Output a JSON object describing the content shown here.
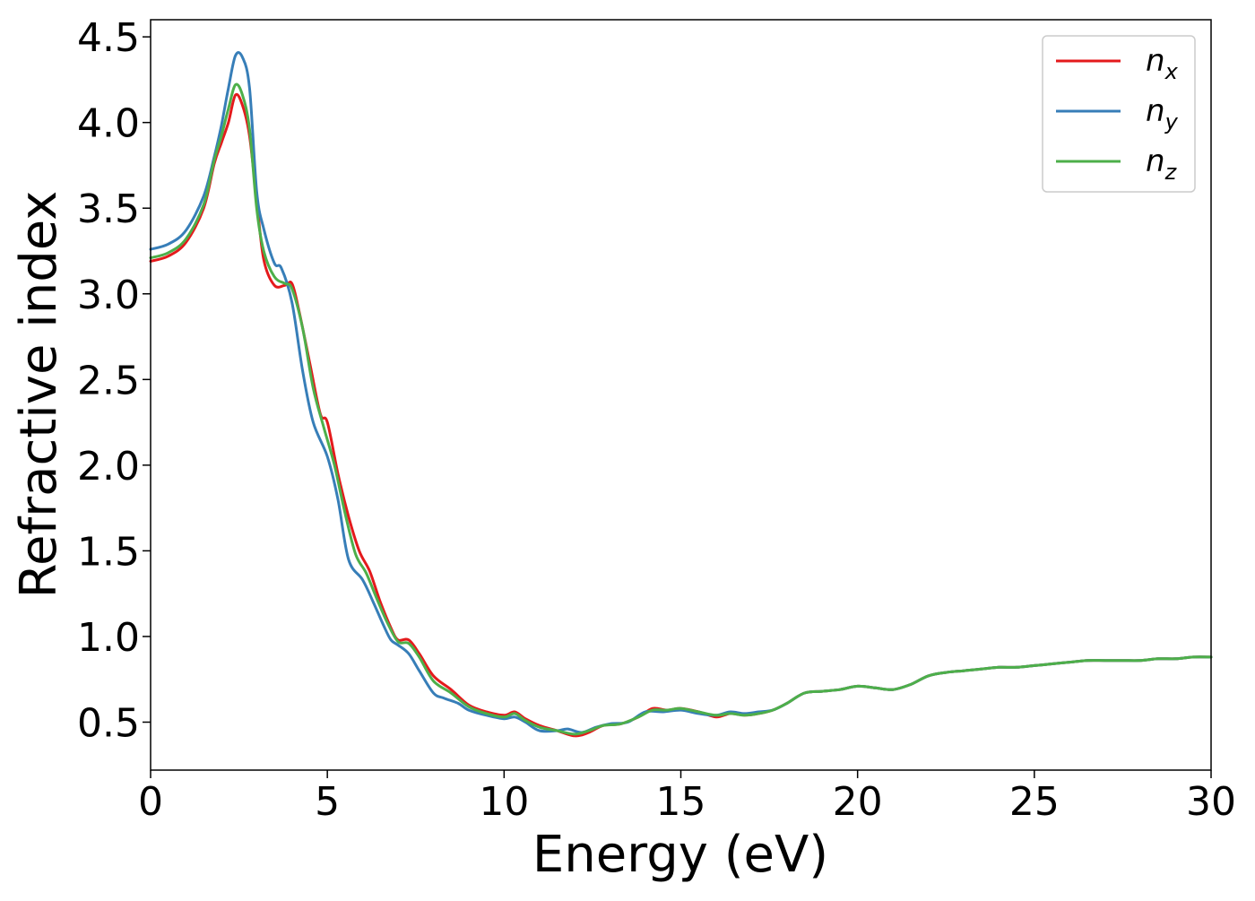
{
  "chart_data": {
    "type": "line",
    "title": "",
    "xlabel": "Energy (eV)",
    "ylabel": "Refractive index",
    "xlim": [
      0,
      30
    ],
    "ylim": [
      0.22,
      4.6
    ],
    "xticks": [
      {
        "value": 0,
        "label": "0"
      },
      {
        "value": 5,
        "label": "5"
      },
      {
        "value": 10,
        "label": "10"
      },
      {
        "value": 15,
        "label": "15"
      },
      {
        "value": 20,
        "label": "20"
      },
      {
        "value": 25,
        "label": "25"
      },
      {
        "value": 30,
        "label": "30"
      }
    ],
    "yticks": [
      {
        "value": 0.5,
        "label": "0.5"
      },
      {
        "value": 1.0,
        "label": "1.0"
      },
      {
        "value": 1.5,
        "label": "1.5"
      },
      {
        "value": 2.0,
        "label": "2.0"
      },
      {
        "value": 2.5,
        "label": "2.5"
      },
      {
        "value": 3.0,
        "label": "3.0"
      },
      {
        "value": 3.5,
        "label": "3.5"
      },
      {
        "value": 4.0,
        "label": "4.0"
      },
      {
        "value": 4.5,
        "label": "4.5"
      }
    ],
    "grid": false,
    "legend": {
      "placement": "top-right"
    },
    "series": [
      {
        "name": "n",
        "subscript": "x",
        "color": "#e41a1c",
        "points": [
          [
            0,
            3.19
          ],
          [
            0.5,
            3.22
          ],
          [
            1.0,
            3.3
          ],
          [
            1.5,
            3.5
          ],
          [
            1.8,
            3.76
          ],
          [
            2.0,
            3.88
          ],
          [
            2.2,
            4.0
          ],
          [
            2.4,
            4.16
          ],
          [
            2.6,
            4.1
          ],
          [
            2.8,
            3.92
          ],
          [
            3.0,
            3.55
          ],
          [
            3.2,
            3.2
          ],
          [
            3.5,
            3.05
          ],
          [
            3.8,
            3.05
          ],
          [
            4.0,
            3.06
          ],
          [
            4.2,
            2.9
          ],
          [
            4.5,
            2.6
          ],
          [
            4.8,
            2.3
          ],
          [
            5.0,
            2.25
          ],
          [
            5.3,
            1.95
          ],
          [
            5.6,
            1.7
          ],
          [
            5.9,
            1.5
          ],
          [
            6.2,
            1.38
          ],
          [
            6.5,
            1.2
          ],
          [
            6.8,
            1.05
          ],
          [
            7.0,
            0.98
          ],
          [
            7.3,
            0.98
          ],
          [
            7.6,
            0.9
          ],
          [
            8.0,
            0.77
          ],
          [
            8.5,
            0.69
          ],
          [
            9.0,
            0.6
          ],
          [
            9.5,
            0.56
          ],
          [
            10.0,
            0.54
          ],
          [
            10.3,
            0.56
          ],
          [
            10.6,
            0.52
          ],
          [
            11.0,
            0.48
          ],
          [
            11.5,
            0.45
          ],
          [
            12.0,
            0.42
          ],
          [
            12.4,
            0.44
          ],
          [
            12.8,
            0.48
          ],
          [
            13.3,
            0.49
          ],
          [
            13.8,
            0.53
          ],
          [
            14.2,
            0.58
          ],
          [
            14.6,
            0.57
          ],
          [
            15.0,
            0.58
          ],
          [
            15.5,
            0.56
          ],
          [
            16.0,
            0.53
          ],
          [
            16.4,
            0.55
          ],
          [
            16.8,
            0.54
          ],
          [
            17.2,
            0.55
          ],
          [
            17.6,
            0.57
          ],
          [
            18.0,
            0.61
          ],
          [
            18.5,
            0.67
          ],
          [
            19.0,
            0.68
          ],
          [
            19.5,
            0.69
          ],
          [
            20.0,
            0.71
          ],
          [
            20.5,
            0.7
          ],
          [
            21.0,
            0.69
          ],
          [
            21.5,
            0.72
          ],
          [
            22.0,
            0.77
          ],
          [
            22.5,
            0.79
          ],
          [
            23.0,
            0.8
          ],
          [
            23.5,
            0.81
          ],
          [
            24.0,
            0.82
          ],
          [
            24.5,
            0.82
          ],
          [
            25.0,
            0.83
          ],
          [
            25.5,
            0.84
          ],
          [
            26.0,
            0.85
          ],
          [
            26.5,
            0.86
          ],
          [
            27.0,
            0.86
          ],
          [
            27.5,
            0.86
          ],
          [
            28.0,
            0.86
          ],
          [
            28.5,
            0.87
          ],
          [
            29.0,
            0.87
          ],
          [
            29.5,
            0.88
          ],
          [
            30.0,
            0.88
          ]
        ]
      },
      {
        "name": "n",
        "subscript": "y",
        "color": "#377eb8",
        "points": [
          [
            0,
            3.26
          ],
          [
            0.5,
            3.29
          ],
          [
            1.0,
            3.37
          ],
          [
            1.5,
            3.57
          ],
          [
            1.8,
            3.8
          ],
          [
            2.0,
            3.98
          ],
          [
            2.2,
            4.2
          ],
          [
            2.4,
            4.39
          ],
          [
            2.6,
            4.38
          ],
          [
            2.8,
            4.2
          ],
          [
            3.0,
            3.6
          ],
          [
            3.2,
            3.38
          ],
          [
            3.5,
            3.18
          ],
          [
            3.7,
            3.15
          ],
          [
            4.0,
            2.95
          ],
          [
            4.3,
            2.55
          ],
          [
            4.6,
            2.25
          ],
          [
            5.0,
            2.05
          ],
          [
            5.3,
            1.8
          ],
          [
            5.6,
            1.45
          ],
          [
            6.0,
            1.33
          ],
          [
            6.3,
            1.2
          ],
          [
            6.6,
            1.06
          ],
          [
            6.8,
            0.98
          ],
          [
            7.0,
            0.95
          ],
          [
            7.3,
            0.9
          ],
          [
            7.6,
            0.8
          ],
          [
            8.0,
            0.67
          ],
          [
            8.3,
            0.64
          ],
          [
            8.7,
            0.61
          ],
          [
            9.0,
            0.57
          ],
          [
            9.5,
            0.54
          ],
          [
            10.0,
            0.52
          ],
          [
            10.3,
            0.53
          ],
          [
            10.6,
            0.5
          ],
          [
            11.0,
            0.45
          ],
          [
            11.5,
            0.45
          ],
          [
            11.8,
            0.46
          ],
          [
            12.2,
            0.44
          ],
          [
            12.6,
            0.47
          ],
          [
            13.0,
            0.49
          ],
          [
            13.5,
            0.5
          ],
          [
            14.0,
            0.56
          ],
          [
            14.5,
            0.56
          ],
          [
            15.0,
            0.57
          ],
          [
            15.5,
            0.55
          ],
          [
            16.0,
            0.54
          ],
          [
            16.4,
            0.56
          ],
          [
            16.8,
            0.55
          ],
          [
            17.2,
            0.56
          ],
          [
            17.6,
            0.57
          ],
          [
            18.0,
            0.61
          ],
          [
            18.5,
            0.67
          ],
          [
            19.0,
            0.68
          ],
          [
            19.5,
            0.69
          ],
          [
            20.0,
            0.71
          ],
          [
            20.5,
            0.7
          ],
          [
            21.0,
            0.69
          ],
          [
            21.5,
            0.72
          ],
          [
            22.0,
            0.77
          ],
          [
            22.5,
            0.79
          ],
          [
            23.0,
            0.8
          ],
          [
            23.5,
            0.81
          ],
          [
            24.0,
            0.82
          ],
          [
            24.5,
            0.82
          ],
          [
            25.0,
            0.83
          ],
          [
            25.5,
            0.84
          ],
          [
            26.0,
            0.85
          ],
          [
            26.5,
            0.86
          ],
          [
            27.0,
            0.86
          ],
          [
            27.5,
            0.86
          ],
          [
            28.0,
            0.86
          ],
          [
            28.5,
            0.87
          ],
          [
            29.0,
            0.87
          ],
          [
            29.5,
            0.88
          ],
          [
            30.0,
            0.88
          ]
        ]
      },
      {
        "name": "n",
        "subscript": "z",
        "color": "#4daf4a",
        "points": [
          [
            0,
            3.21
          ],
          [
            0.5,
            3.24
          ],
          [
            1.0,
            3.32
          ],
          [
            1.5,
            3.52
          ],
          [
            1.8,
            3.78
          ],
          [
            2.0,
            3.92
          ],
          [
            2.2,
            4.08
          ],
          [
            2.4,
            4.22
          ],
          [
            2.6,
            4.16
          ],
          [
            2.8,
            3.96
          ],
          [
            3.0,
            3.5
          ],
          [
            3.2,
            3.25
          ],
          [
            3.5,
            3.1
          ],
          [
            3.8,
            3.06
          ],
          [
            4.0,
            3.03
          ],
          [
            4.3,
            2.8
          ],
          [
            4.6,
            2.45
          ],
          [
            4.9,
            2.22
          ],
          [
            5.2,
            2.0
          ],
          [
            5.5,
            1.72
          ],
          [
            5.8,
            1.48
          ],
          [
            6.1,
            1.37
          ],
          [
            6.4,
            1.22
          ],
          [
            6.7,
            1.08
          ],
          [
            7.0,
            0.97
          ],
          [
            7.3,
            0.96
          ],
          [
            7.6,
            0.88
          ],
          [
            8.0,
            0.74
          ],
          [
            8.5,
            0.67
          ],
          [
            9.0,
            0.59
          ],
          [
            9.5,
            0.55
          ],
          [
            10.0,
            0.53
          ],
          [
            10.3,
            0.55
          ],
          [
            10.6,
            0.51
          ],
          [
            11.0,
            0.47
          ],
          [
            11.5,
            0.45
          ],
          [
            12.0,
            0.43
          ],
          [
            12.4,
            0.45
          ],
          [
            12.8,
            0.48
          ],
          [
            13.3,
            0.49
          ],
          [
            13.8,
            0.53
          ],
          [
            14.2,
            0.57
          ],
          [
            14.6,
            0.57
          ],
          [
            15.0,
            0.58
          ],
          [
            15.5,
            0.56
          ],
          [
            16.0,
            0.54
          ],
          [
            16.4,
            0.55
          ],
          [
            16.8,
            0.54
          ],
          [
            17.2,
            0.55
          ],
          [
            17.6,
            0.57
          ],
          [
            18.0,
            0.61
          ],
          [
            18.5,
            0.67
          ],
          [
            19.0,
            0.68
          ],
          [
            19.5,
            0.69
          ],
          [
            20.0,
            0.71
          ],
          [
            20.5,
            0.7
          ],
          [
            21.0,
            0.69
          ],
          [
            21.5,
            0.72
          ],
          [
            22.0,
            0.77
          ],
          [
            22.5,
            0.79
          ],
          [
            23.0,
            0.8
          ],
          [
            23.5,
            0.81
          ],
          [
            24.0,
            0.82
          ],
          [
            24.5,
            0.82
          ],
          [
            25.0,
            0.83
          ],
          [
            25.5,
            0.84
          ],
          [
            26.0,
            0.85
          ],
          [
            26.5,
            0.86
          ],
          [
            27.0,
            0.86
          ],
          [
            27.5,
            0.86
          ],
          [
            28.0,
            0.86
          ],
          [
            28.5,
            0.87
          ],
          [
            29.0,
            0.87
          ],
          [
            29.5,
            0.88
          ],
          [
            30.0,
            0.88
          ]
        ]
      }
    ]
  }
}
